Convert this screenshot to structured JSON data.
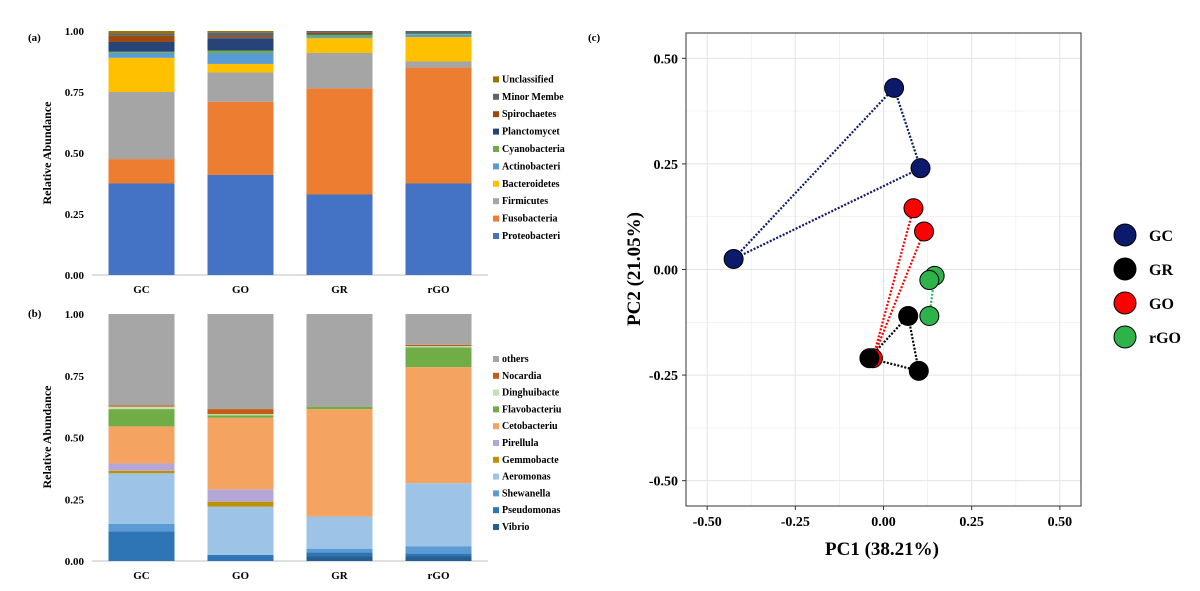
{
  "chart_data": [
    {
      "panel": "(a)",
      "type": "stacked-bar",
      "ylabel": "Relative Abundance",
      "ylim": [
        0,
        1
      ],
      "yticks": [
        "0.00",
        "0.25",
        "0.50",
        "0.75",
        "1.00"
      ],
      "categories": [
        "GC",
        "GO",
        "GR",
        "rGO"
      ],
      "legend_position": "right",
      "series": [
        {
          "name": "Proteobacteria",
          "label": "Proteobacteri",
          "color": "#4472c4",
          "values": [
            0.375,
            0.41,
            0.33,
            0.375
          ]
        },
        {
          "name": "Fusobacteria",
          "label": "Fusobacteria",
          "color": "#ed7d31",
          "values": [
            0.1,
            0.3,
            0.435,
            0.475
          ]
        },
        {
          "name": "Firmicutes",
          "label": "Firmicutes",
          "color": "#a5a5a5",
          "values": [
            0.275,
            0.12,
            0.145,
            0.025
          ]
        },
        {
          "name": "Bacteroidetes",
          "label": "Bacteroidetes",
          "color": "#ffc000",
          "values": [
            0.14,
            0.035,
            0.06,
            0.1
          ]
        },
        {
          "name": "Actinobacteria",
          "label": "Actinobacteri",
          "color": "#5b9bd5",
          "values": [
            0.02,
            0.045,
            0.005,
            0.01
          ]
        },
        {
          "name": "Cyanobacteria",
          "label": "Cyanobacteria",
          "color": "#70ad47",
          "values": [
            0.005,
            0.01,
            0.01,
            0.005
          ]
        },
        {
          "name": "Planctomycetes",
          "label": "Planctomycet",
          "color": "#264478",
          "values": [
            0.04,
            0.05,
            0.005,
            0.005
          ]
        },
        {
          "name": "Spirochaetes",
          "label": "Spirochaetes",
          "color": "#9e480e",
          "values": [
            0.025,
            0.005,
            0.005,
            0.0
          ]
        },
        {
          "name": "Minor Members",
          "label": "Minor Membe",
          "color": "#636363",
          "values": [
            0.01,
            0.02,
            0.005,
            0.005
          ]
        },
        {
          "name": "Unclassified",
          "label": "Unclassified",
          "color": "#997300",
          "values": [
            0.01,
            0.005,
            0.0,
            0.0
          ]
        }
      ]
    },
    {
      "panel": "(b)",
      "type": "stacked-bar",
      "ylabel": "Relative Abundance",
      "ylim": [
        0,
        1
      ],
      "yticks": [
        "0.00",
        "0.25",
        "0.50",
        "0.75",
        "1.00"
      ],
      "categories": [
        "GC",
        "GO",
        "GR",
        "rGO"
      ],
      "legend_position": "right",
      "series": [
        {
          "name": "Vibrio",
          "label": "Vibrio",
          "color": "#255e91",
          "values": [
            0.0,
            0.0,
            0.02,
            0.02
          ]
        },
        {
          "name": "Pseudomonas",
          "label": "Pseudomonas",
          "color": "#2e75b6",
          "values": [
            0.12,
            0.025,
            0.015,
            0.01
          ]
        },
        {
          "name": "Shewanella",
          "label": "Shewanella",
          "color": "#5b9bd5",
          "values": [
            0.03,
            0.0,
            0.015,
            0.03
          ]
        },
        {
          "name": "Aeromonas",
          "label": "Aeromonas",
          "color": "#9dc3e6",
          "values": [
            0.205,
            0.195,
            0.13,
            0.255
          ]
        },
        {
          "name": "Gemmobacter",
          "label": "Gemmobacte",
          "color": "#bf9000",
          "values": [
            0.01,
            0.02,
            0.0,
            0.0
          ]
        },
        {
          "name": "Pirellula",
          "label": "Pirellula",
          "color": "#b4a7d6",
          "values": [
            0.03,
            0.05,
            0.0,
            0.0
          ]
        },
        {
          "name": "Cetobacterium",
          "label": "Cetobacteriu",
          "color": "#f4a460",
          "values": [
            0.15,
            0.29,
            0.435,
            0.47
          ]
        },
        {
          "name": "Flavobacterium",
          "label": "Flavobacteriu",
          "color": "#70ad47",
          "values": [
            0.07,
            0.01,
            0.01,
            0.08
          ]
        },
        {
          "name": "Dinghuibacter",
          "label": "Dinghuibacte",
          "color": "#c5e0b4",
          "values": [
            0.01,
            0.005,
            0.0,
            0.005
          ]
        },
        {
          "name": "Nocardia",
          "label": "Nocardia",
          "color": "#c55a11",
          "values": [
            0.005,
            0.02,
            0.0,
            0.005
          ]
        },
        {
          "name": "others",
          "label": "others",
          "color": "#a6a6a6",
          "values": [
            0.37,
            0.385,
            0.375,
            0.125
          ]
        }
      ]
    },
    {
      "panel": "(c)",
      "type": "scatter",
      "xlabel": "PC1 (38.21%)",
      "ylabel": "PC2 (21.05%)",
      "xlim": [
        -0.56,
        0.56
      ],
      "ylim": [
        -0.56,
        0.56
      ],
      "xticks": [
        "-0.50",
        "-0.25",
        "0.00",
        "0.25",
        "0.50"
      ],
      "yticks": [
        "0.50",
        "0.25",
        "0.00",
        "-0.25",
        "-0.50"
      ],
      "xtick_values": [
        -0.5,
        -0.25,
        0.0,
        0.25,
        0.5
      ],
      "ytick_values": [
        0.5,
        0.25,
        0.0,
        -0.25,
        -0.5
      ],
      "grid": true,
      "legend_position": "right",
      "series": [
        {
          "name": "GC",
          "color": "#0c1a6b",
          "points": [
            [
              0.03,
              0.43
            ],
            [
              0.105,
              0.24
            ],
            [
              -0.425,
              0.025
            ]
          ]
        },
        {
          "name": "GR",
          "color": "#000000",
          "points": [
            [
              -0.04,
              -0.21
            ],
            [
              0.07,
              -0.11
            ],
            [
              0.1,
              -0.24
            ]
          ]
        },
        {
          "name": "GO",
          "color": "#ff0000",
          "points": [
            [
              0.085,
              0.145
            ],
            [
              0.115,
              0.09
            ],
            [
              -0.03,
              -0.21
            ]
          ]
        },
        {
          "name": "rGO",
          "color": "#2db34a",
          "points": [
            [
              0.145,
              -0.015
            ],
            [
              0.13,
              -0.025
            ],
            [
              0.13,
              -0.11
            ]
          ]
        }
      ]
    }
  ]
}
